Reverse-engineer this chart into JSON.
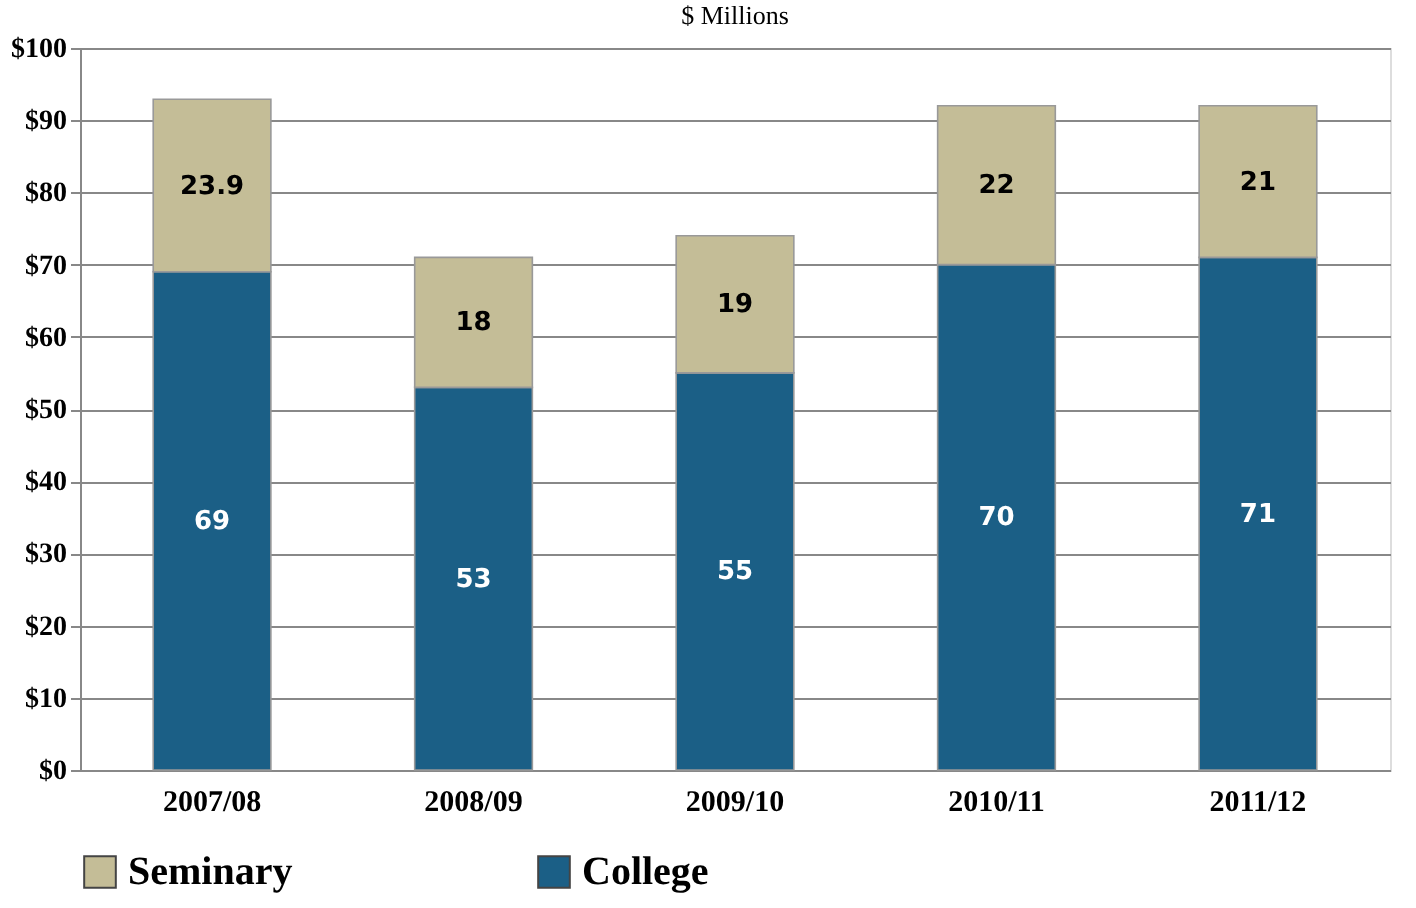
{
  "chart_data": {
    "type": "bar",
    "title": "$ Millions",
    "stacked": true,
    "data_labels": true,
    "grid": "y",
    "legend": "bottom",
    "categories": [
      "2007/08",
      "2008/09",
      "2009/10",
      "2010/11",
      "2011/12"
    ],
    "series": [
      {
        "name": "College",
        "color": "#1b5f86",
        "values": [
          69,
          53,
          55,
          70,
          71
        ]
      },
      {
        "name": "Seminary",
        "color": "#c4bd97",
        "values": [
          23.9,
          18,
          19,
          22,
          21
        ]
      }
    ],
    "ylim": [
      0,
      100
    ],
    "yticks": [
      {
        "value": 0,
        "label": "$0"
      },
      {
        "value": 10,
        "label": "$10"
      },
      {
        "value": 20,
        "label": "$20"
      },
      {
        "value": 30,
        "label": "$30"
      },
      {
        "value": 40,
        "label": "$40"
      },
      {
        "value": 50,
        "label": "$50"
      },
      {
        "value": 60,
        "label": "$60"
      },
      {
        "value": 70,
        "label": "$70"
      },
      {
        "value": 80,
        "label": "$80"
      },
      {
        "value": 90,
        "label": "$90"
      },
      {
        "value": 100,
        "label": "$100"
      }
    ]
  }
}
